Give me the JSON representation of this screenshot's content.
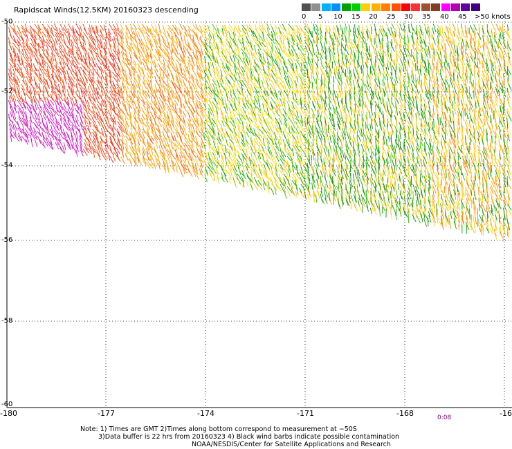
{
  "title": "Rapidscat Winds(12.5KM) 20160323 descending",
  "legend": {
    "labels": [
      "0",
      "5",
      "10",
      "15",
      "20",
      "25",
      "30",
      "35",
      "40",
      "45",
      ">50 knots"
    ],
    "colors": [
      "#505050",
      "#909090",
      "#00b0ff",
      "#0090ff",
      "#00a000",
      "#00d000",
      "#ffd000",
      "#ffb000",
      "#ff8000",
      "#ff5000",
      "#ff0000",
      "#ff3030",
      "#a05030",
      "#804020",
      "#ff00ff",
      "#b000b0",
      "#6000a0",
      "#400080"
    ]
  },
  "lat_labels": [
    "-50",
    "-52",
    "-54",
    "-56",
    "-58",
    "-60"
  ],
  "lon_labels": [
    "-180",
    "-177",
    "-174",
    "-171",
    "-168",
    "-16"
  ],
  "time_label": "0:08",
  "notes": [
    "Note: 1) Times are GMT 2)Times along bottom correspond to measurement at −50S",
    "3)Data buffer is 22 hrs from 20160323 4) Black wind barbs indicate possible contamination",
    "NOAA/NESDIS/Center for Satellite Applications and Research"
  ]
}
